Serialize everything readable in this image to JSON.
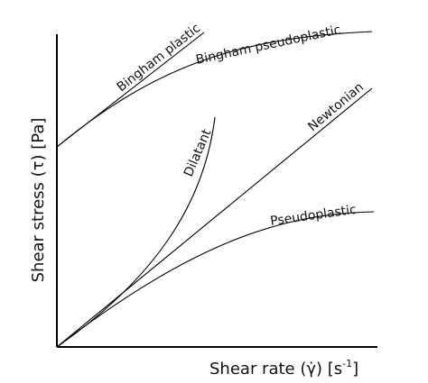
{
  "axes": {
    "x_label": "Shear rate (γ̇) [s",
    "x_label_exponent": "-1",
    "x_label_close": "]",
    "y_label": "Shear stress (τ) [Pa]"
  },
  "curves": [
    {
      "id": "bingham-plastic",
      "label": "Bingham plastic"
    },
    {
      "id": "bingham-pseudoplastic",
      "label": "Bingham pseudoplastic"
    },
    {
      "id": "dilatant",
      "label": "Dilatant"
    },
    {
      "id": "newtonian",
      "label": "Newtonian"
    },
    {
      "id": "pseudoplastic",
      "label": "Pseudoplastic"
    }
  ]
}
